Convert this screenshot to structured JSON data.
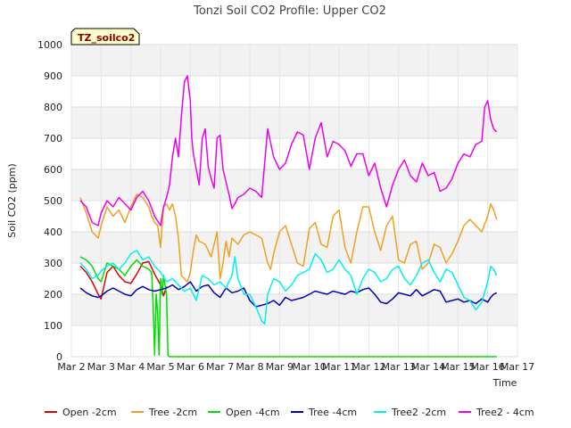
{
  "chart_data": {
    "type": "line",
    "title": "Tonzi Soil CO2 Profile: Upper CO2",
    "xlabel": "Time",
    "ylabel": "Soil CO2 (ppm)",
    "tag": "TZ_soilco2",
    "ylim": [
      0,
      1000
    ],
    "xlim": [
      0,
      15
    ],
    "x_ticks": [
      {
        "value": 0,
        "label": "Mar 2"
      },
      {
        "value": 1,
        "label": "Mar 3"
      },
      {
        "value": 2,
        "label": "Mar 4"
      },
      {
        "value": 3,
        "label": "Mar 5"
      },
      {
        "value": 4,
        "label": "Mar 6"
      },
      {
        "value": 5,
        "label": "Mar 7"
      },
      {
        "value": 6,
        "label": "Mar 8"
      },
      {
        "value": 7,
        "label": "Mar 9"
      },
      {
        "value": 8,
        "label": "Mar 10"
      },
      {
        "value": 9,
        "label": "Mar 11"
      },
      {
        "value": 10,
        "label": "Mar 12"
      },
      {
        "value": 11,
        "label": "Mar 13"
      },
      {
        "value": 12,
        "label": "Mar 14"
      },
      {
        "value": 13,
        "label": "Mar 15"
      },
      {
        "value": 14,
        "label": "Mar 16"
      },
      {
        "value": 15,
        "label": "Mar 17"
      }
    ],
    "y_ticks": [
      0,
      100,
      200,
      300,
      400,
      500,
      600,
      700,
      800,
      900,
      1000
    ],
    "grid": true,
    "legend_position": "bottom",
    "series": [
      {
        "name": "Open -2cm",
        "color": "#dd0000",
        "x": [
          0.3,
          0.5,
          0.7,
          0.9,
          1.0,
          1.2,
          1.4,
          1.6,
          1.8,
          2.0,
          2.2,
          2.4,
          2.6,
          2.8,
          3.0,
          3.1,
          3.2
        ],
        "y": [
          290,
          270,
          240,
          200,
          185,
          270,
          290,
          260,
          240,
          235,
          265,
          300,
          305,
          265,
          230,
          195,
          225
        ]
      },
      {
        "name": "Tree -2cm",
        "color": "#f0a020",
        "x": [
          0.3,
          0.5,
          0.7,
          0.9,
          1.0,
          1.2,
          1.4,
          1.6,
          1.8,
          2.0,
          2.2,
          2.4,
          2.6,
          2.7,
          2.8,
          2.9,
          3.0,
          3.1,
          3.2,
          3.3,
          3.4,
          3.5,
          3.6,
          3.7,
          3.8,
          3.9,
          4.0,
          4.1,
          4.2,
          4.3,
          4.5,
          4.7,
          4.9,
          5.0,
          5.1,
          5.2,
          5.3,
          5.4,
          5.6,
          5.8,
          6.0,
          6.2,
          6.4,
          6.6,
          6.7,
          6.8,
          7.0,
          7.2,
          7.4,
          7.6,
          7.8,
          8.0,
          8.2,
          8.4,
          8.6,
          8.8,
          9.0,
          9.2,
          9.4,
          9.6,
          9.8,
          10.0,
          10.2,
          10.4,
          10.6,
          10.8,
          11.0,
          11.2,
          11.4,
          11.6,
          11.8,
          12.0,
          12.2,
          12.4,
          12.6,
          12.8,
          13.0,
          13.2,
          13.4,
          13.6,
          13.8,
          14.0,
          14.1,
          14.2,
          14.3
        ],
        "y": [
          510,
          460,
          400,
          380,
          420,
          480,
          450,
          470,
          430,
          480,
          520,
          510,
          480,
          450,
          430,
          420,
          350,
          480,
          490,
          470,
          490,
          450,
          380,
          260,
          250,
          240,
          270,
          340,
          390,
          370,
          360,
          320,
          400,
          250,
          300,
          370,
          320,
          380,
          360,
          390,
          400,
          390,
          380,
          300,
          280,
          330,
          400,
          420,
          360,
          300,
          290,
          410,
          430,
          360,
          350,
          450,
          470,
          350,
          300,
          400,
          480,
          480,
          400,
          340,
          420,
          450,
          310,
          300,
          360,
          370,
          280,
          300,
          360,
          350,
          300,
          330,
          370,
          420,
          440,
          420,
          400,
          450,
          490,
          470,
          440
        ]
      },
      {
        "name": "Open -4cm",
        "color": "#00dd00",
        "x": [
          0.3,
          0.5,
          0.7,
          0.9,
          1.0,
          1.2,
          1.4,
          1.6,
          1.8,
          2.0,
          2.2,
          2.4,
          2.6,
          2.7,
          2.75,
          2.8,
          2.85,
          2.9,
          2.95,
          3.0,
          3.05,
          3.1,
          3.2,
          3.25,
          3.3,
          3.5,
          4.0,
          6.0,
          8.0,
          10.0,
          12.0,
          14.0,
          14.3
        ],
        "y": [
          320,
          310,
          290,
          250,
          240,
          300,
          290,
          280,
          260,
          290,
          310,
          290,
          280,
          270,
          160,
          5,
          200,
          140,
          5,
          250,
          200,
          260,
          200,
          5,
          0,
          0,
          0,
          0,
          0,
          0,
          0,
          0,
          0
        ]
      },
      {
        "name": "Tree -4cm",
        "color": "#0000bb",
        "x": [
          0.3,
          0.5,
          0.7,
          0.9,
          1.0,
          1.2,
          1.4,
          1.6,
          1.8,
          2.0,
          2.2,
          2.4,
          2.6,
          2.8,
          3.0,
          3.2,
          3.4,
          3.6,
          3.8,
          4.0,
          4.2,
          4.4,
          4.6,
          4.8,
          5.0,
          5.2,
          5.4,
          5.6,
          5.8,
          6.0,
          6.2,
          6.4,
          6.6,
          6.8,
          7.0,
          7.2,
          7.4,
          7.6,
          7.8,
          8.0,
          8.2,
          8.4,
          8.6,
          8.8,
          9.0,
          9.2,
          9.4,
          9.6,
          9.8,
          10.0,
          10.2,
          10.4,
          10.6,
          10.8,
          11.0,
          11.2,
          11.4,
          11.6,
          11.8,
          12.0,
          12.2,
          12.4,
          12.6,
          12.8,
          13.0,
          13.2,
          13.4,
          13.6,
          13.8,
          14.0,
          14.1,
          14.2,
          14.3
        ],
        "y": [
          220,
          205,
          195,
          190,
          195,
          210,
          220,
          210,
          200,
          195,
          215,
          225,
          215,
          210,
          215,
          220,
          230,
          215,
          225,
          240,
          210,
          225,
          230,
          205,
          190,
          220,
          205,
          210,
          220,
          180,
          160,
          165,
          170,
          180,
          165,
          190,
          180,
          185,
          190,
          200,
          210,
          205,
          200,
          210,
          205,
          200,
          210,
          205,
          215,
          220,
          200,
          175,
          170,
          185,
          205,
          200,
          195,
          215,
          195,
          205,
          215,
          210,
          175,
          180,
          185,
          175,
          180,
          170,
          185,
          175,
          190,
          200,
          205
        ]
      },
      {
        "name": "Tree2 -2cm",
        "color": "#00f0f0",
        "x": [
          0.3,
          0.5,
          0.7,
          0.9,
          1.0,
          1.2,
          1.4,
          1.6,
          1.8,
          2.0,
          2.2,
          2.4,
          2.6,
          2.8,
          3.0,
          3.2,
          3.4,
          3.6,
          3.8,
          4.0,
          4.2,
          4.4,
          4.6,
          4.8,
          5.0,
          5.2,
          5.4,
          5.5,
          5.6,
          5.8,
          6.0,
          6.2,
          6.4,
          6.5,
          6.6,
          6.8,
          7.0,
          7.2,
          7.4,
          7.6,
          7.8,
          8.0,
          8.2,
          8.4,
          8.6,
          8.8,
          9.0,
          9.2,
          9.4,
          9.6,
          9.8,
          10.0,
          10.2,
          10.4,
          10.6,
          10.8,
          11.0,
          11.2,
          11.4,
          11.6,
          11.8,
          12.0,
          12.2,
          12.4,
          12.6,
          12.8,
          13.0,
          13.2,
          13.4,
          13.6,
          13.8,
          14.0,
          14.1,
          14.2,
          14.3
        ],
        "y": [
          300,
          280,
          250,
          260,
          275,
          290,
          300,
          280,
          300,
          330,
          340,
          310,
          320,
          290,
          270,
          240,
          250,
          230,
          210,
          220,
          180,
          260,
          250,
          230,
          240,
          220,
          260,
          320,
          250,
          200,
          200,
          160,
          115,
          105,
          200,
          250,
          240,
          210,
          230,
          260,
          270,
          280,
          330,
          310,
          270,
          280,
          310,
          280,
          260,
          200,
          250,
          280,
          270,
          240,
          250,
          280,
          290,
          250,
          230,
          260,
          300,
          310,
          270,
          240,
          280,
          270,
          230,
          190,
          180,
          150,
          175,
          240,
          290,
          280,
          260
        ]
      },
      {
        "name": "Tree2 - 4cm",
        "color": "#ee00ee",
        "x": [
          0.3,
          0.5,
          0.7,
          0.9,
          1.0,
          1.2,
          1.4,
          1.6,
          1.8,
          2.0,
          2.2,
          2.4,
          2.6,
          2.8,
          3.0,
          3.1,
          3.2,
          3.3,
          3.4,
          3.5,
          3.6,
          3.7,
          3.8,
          3.9,
          4.0,
          4.05,
          4.1,
          4.2,
          4.3,
          4.4,
          4.5,
          4.6,
          4.7,
          4.8,
          4.9,
          5.0,
          5.1,
          5.2,
          5.3,
          5.4,
          5.5,
          5.6,
          5.8,
          6.0,
          6.2,
          6.4,
          6.6,
          6.8,
          7.0,
          7.2,
          7.4,
          7.6,
          7.8,
          8.0,
          8.2,
          8.4,
          8.6,
          8.8,
          9.0,
          9.2,
          9.4,
          9.6,
          9.8,
          10.0,
          10.2,
          10.4,
          10.6,
          10.8,
          11.0,
          11.2,
          11.4,
          11.6,
          11.8,
          12.0,
          12.2,
          12.4,
          12.6,
          12.8,
          13.0,
          13.2,
          13.4,
          13.6,
          13.8,
          13.9,
          14.0,
          14.1,
          14.2,
          14.3
        ],
        "y": [
          500,
          480,
          430,
          420,
          460,
          500,
          480,
          510,
          490,
          470,
          510,
          530,
          500,
          450,
          420,
          480,
          510,
          550,
          640,
          700,
          640,
          770,
          880,
          900,
          820,
          700,
          650,
          600,
          550,
          700,
          730,
          610,
          570,
          540,
          700,
          710,
          600,
          560,
          520,
          475,
          490,
          510,
          520,
          540,
          530,
          510,
          730,
          640,
          600,
          620,
          680,
          720,
          710,
          600,
          700,
          750,
          640,
          690,
          680,
          660,
          610,
          650,
          650,
          580,
          620,
          540,
          480,
          550,
          600,
          630,
          580,
          560,
          620,
          580,
          590,
          530,
          540,
          570,
          620,
          650,
          640,
          680,
          690,
          800,
          820,
          760,
          730,
          720
        ]
      }
    ]
  }
}
